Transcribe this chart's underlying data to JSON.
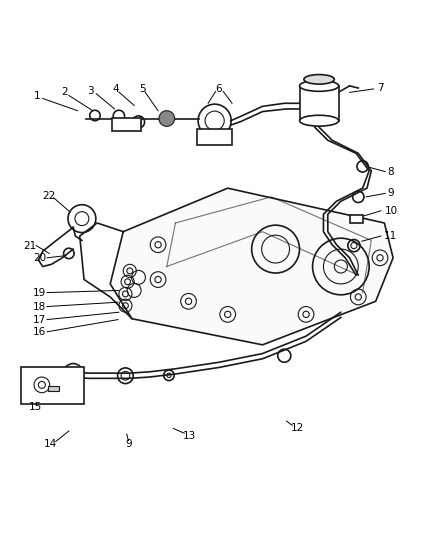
{
  "title": "",
  "bg_color": "#ffffff",
  "fig_width": 4.38,
  "fig_height": 5.33,
  "dpi": 100,
  "line_color": "#000000",
  "label_fontsize": 7.5,
  "diagram_color": "#1a1a1a",
  "light_gray": "#888888"
}
